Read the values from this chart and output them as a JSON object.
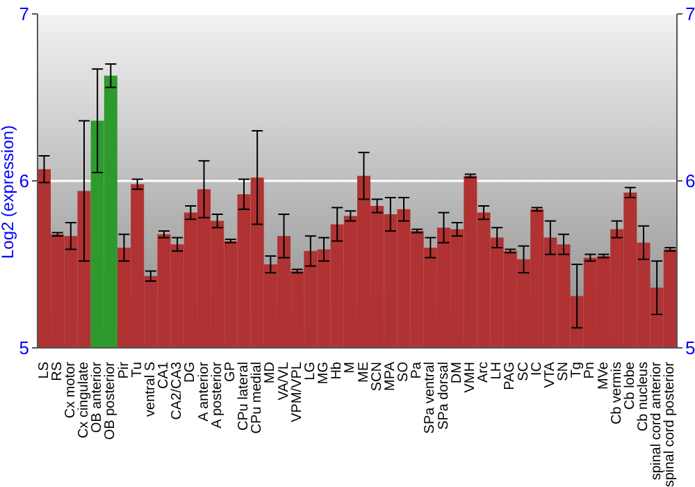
{
  "chart_data": {
    "type": "bar",
    "ylabel": "Log2 (expression)",
    "categories": [
      "LS",
      "RS",
      "Cx motor",
      "Cx cingulate",
      "OB anterior",
      "OB posterior",
      "Pir",
      "Tu",
      "ventral S",
      "CA1",
      "CA2/CA3",
      "DG",
      "A anterior",
      "A posterior",
      "GP",
      "CPu lateral",
      "CPu medial",
      "MD",
      "VA/VL",
      "VPM/VPL",
      "LG",
      "MG",
      "Hb",
      "M",
      "ME",
      "SCN",
      "MPA",
      "SO",
      "Pa",
      "SPa ventral",
      "SPa dorsal",
      "DM",
      "VMH",
      "Arc",
      "LH",
      "PAG",
      "SC",
      "IC",
      "VTA",
      "SN",
      "Tg",
      "Pn",
      "MVe",
      "Cb vermis",
      "Cb lobe",
      "Cb nucleus",
      "spinal cord anterior",
      "spinal cord posterior"
    ],
    "values": [
      6.07,
      5.68,
      5.67,
      5.94,
      6.36,
      6.63,
      5.6,
      5.98,
      5.43,
      5.68,
      5.62,
      5.81,
      5.95,
      5.76,
      5.64,
      5.92,
      6.02,
      5.5,
      5.67,
      5.46,
      5.58,
      5.59,
      5.74,
      5.79,
      6.03,
      5.85,
      5.8,
      5.83,
      5.7,
      5.6,
      5.72,
      5.71,
      6.03,
      5.81,
      5.66,
      5.58,
      5.53,
      5.83,
      5.66,
      5.62,
      5.31,
      5.54,
      5.55,
      5.71,
      5.93,
      5.63,
      5.36,
      5.59
    ],
    "errors": [
      0.08,
      0.01,
      0.08,
      0.42,
      0.31,
      0.07,
      0.08,
      0.03,
      0.03,
      0.02,
      0.04,
      0.04,
      0.17,
      0.04,
      0.01,
      0.09,
      0.28,
      0.05,
      0.13,
      0.01,
      0.09,
      0.07,
      0.1,
      0.03,
      0.14,
      0.04,
      0.1,
      0.07,
      0.01,
      0.06,
      0.09,
      0.04,
      0.01,
      0.04,
      0.06,
      0.01,
      0.08,
      0.01,
      0.1,
      0.06,
      0.19,
      0.02,
      0.01,
      0.05,
      0.03,
      0.1,
      0.16,
      0.01
    ],
    "colors": [
      "#b03232",
      "#b03232",
      "#b03232",
      "#b03232",
      "#2e9a2e",
      "#2e9a2e",
      "#b03232",
      "#b03232",
      "#b03232",
      "#b03232",
      "#b03232",
      "#b03232",
      "#b03232",
      "#b03232",
      "#b03232",
      "#b03232",
      "#b03232",
      "#b03232",
      "#b03232",
      "#b03232",
      "#b03232",
      "#b03232",
      "#b03232",
      "#b03232",
      "#b03232",
      "#b03232",
      "#b03232",
      "#b03232",
      "#b03232",
      "#b03232",
      "#b03232",
      "#b03232",
      "#b03232",
      "#b03232",
      "#b03232",
      "#b03232",
      "#b03232",
      "#b03232",
      "#b03232",
      "#b03232",
      "#b03232",
      "#b03232",
      "#b03232",
      "#b03232",
      "#b03232",
      "#b03232",
      "#b03232",
      "#b03232"
    ],
    "ylim": [
      5,
      7
    ],
    "yticks": [
      5,
      6,
      7
    ],
    "y2lim": [
      5,
      7
    ],
    "y2ticks": [
      5,
      6,
      7
    ],
    "grid": "y"
  }
}
